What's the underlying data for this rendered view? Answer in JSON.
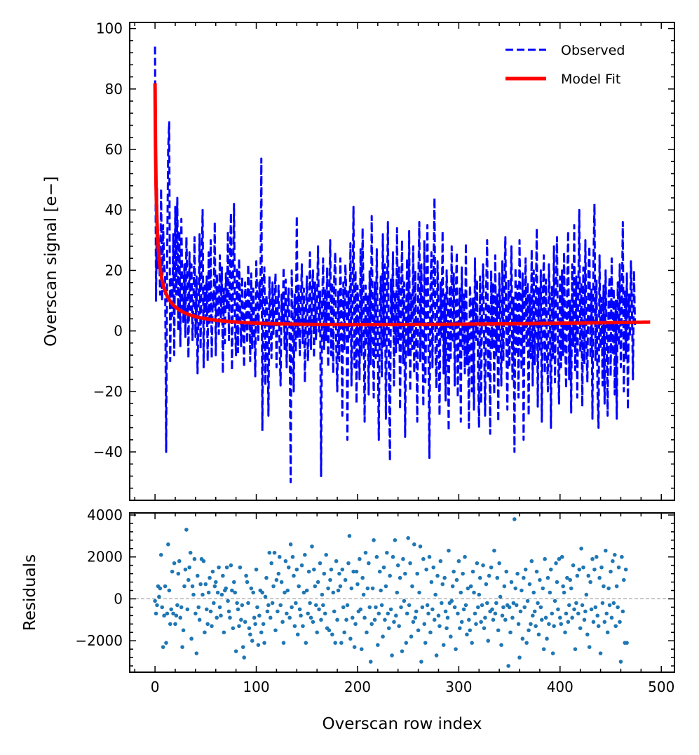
{
  "chart_data": [
    {
      "panel": "top",
      "type": "line",
      "xlabel": "",
      "ylabel": "Overscan signal [e−]",
      "xlim": [
        -25,
        513
      ],
      "ylim": [
        -56,
        102
      ],
      "xticks": [
        0,
        100,
        200,
        300,
        400,
        500
      ],
      "yticks": [
        -40,
        -20,
        0,
        20,
        40,
        60,
        80,
        100
      ],
      "ytick_labels": [
        "−40",
        "−20",
        "0",
        "20",
        "40",
        "60",
        "80",
        "100"
      ],
      "legend": {
        "position": "top-right",
        "entries": [
          "Observed",
          "Model Fit"
        ]
      },
      "series": [
        {
          "name": "Observed",
          "style": "dashed",
          "color": "#0000ff",
          "x_start": 0,
          "x_step": 1,
          "values": [
            94,
            10,
            47,
            20,
            28,
            12,
            47,
            10,
            35,
            22,
            18,
            -40,
            25,
            60,
            69,
            -10,
            18,
            5,
            32,
            -8,
            41,
            12,
            44,
            0,
            33,
            -5,
            37,
            12,
            3,
            22,
            -2,
            31,
            14,
            -9,
            26,
            7,
            22,
            -3,
            10,
            31,
            -2,
            18,
            -14,
            7,
            32,
            -6,
            22,
            40,
            -12,
            15,
            4,
            18,
            -10,
            26,
            2,
            30,
            -9,
            13,
            8,
            36,
            -8,
            19,
            11,
            -1,
            25,
            4,
            21,
            -14,
            14,
            -4,
            19,
            7,
            33,
            -3,
            22,
            39,
            -13,
            16,
            42,
            3,
            -8,
            21,
            -7,
            24,
            10,
            -5,
            18,
            2,
            -12,
            16,
            9,
            -4,
            22,
            12,
            -10,
            19,
            -6,
            14,
            2,
            -15,
            23,
            11,
            -3,
            16,
            7,
            57,
            -33,
            14,
            21,
            -18,
            12,
            5,
            -28,
            18,
            4,
            -9,
            16,
            -1,
            10,
            19,
            -12,
            6,
            15,
            -4,
            -18,
            12,
            3,
            21,
            -6,
            17,
            -12,
            8,
            14,
            -5,
            -50,
            20,
            3,
            -20,
            12,
            -7,
            38,
            -2,
            15,
            -8,
            9,
            22,
            -4,
            14,
            -17,
            6,
            18,
            -10,
            1,
            26,
            -6,
            12,
            20,
            -9,
            16,
            -3,
            9,
            28,
            -1,
            13,
            -48,
            7,
            24,
            -6,
            14,
            -3,
            21,
            -12,
            9,
            30,
            -8,
            16,
            -14,
            18,
            26,
            -5,
            -20,
            13,
            -10,
            24,
            7,
            -28,
            16,
            -6,
            22,
            11,
            -36,
            13,
            -3,
            29,
            -18,
            9,
            41,
            -12,
            20,
            -24,
            15,
            4,
            -16,
            27,
            -8,
            34,
            7,
            -30,
            15,
            -4,
            12,
            -21,
            20,
            -11,
            38,
            3,
            -22,
            16,
            -9,
            27,
            -3,
            -36,
            8,
            18,
            -15,
            32,
            -5,
            22,
            -29,
            10,
            36,
            -13,
            -43,
            17,
            2,
            26,
            -18,
            13,
            -7,
            34,
            -4,
            21,
            -26,
            9,
            30,
            -11,
            16,
            -35,
            4,
            24,
            -8,
            33,
            -20,
            12,
            -6,
            28,
            -14,
            20,
            -3,
            -30,
            15,
            36,
            -10,
            22,
            2,
            -25,
            30,
            -17,
            9,
            35,
            -5,
            -42,
            14,
            26,
            -12,
            18,
            44,
            -7,
            -19,
            23,
            4,
            -28,
            16,
            -2,
            33,
            -14,
            12,
            -23,
            20,
            6,
            -33,
            15,
            -9,
            28,
            -4,
            19,
            -18,
            10,
            26,
            -22,
            5,
            14,
            -30,
            21,
            -6,
            12,
            -14,
            29,
            -11,
            2,
            -32,
            15,
            8,
            -20,
            11,
            -26,
            24,
            -3,
            17,
            -12,
            -32,
            18,
            -24,
            8,
            22,
            -2,
            -28,
            13,
            30,
            -15,
            9,
            -34,
            20,
            -6,
            16,
            -21,
            25,
            -8,
            12,
            -30,
            19,
            6,
            -18,
            23,
            -10,
            14,
            31,
            -4,
            -26,
            17,
            -12,
            9,
            28,
            -16,
            11,
            -40,
            21,
            -7,
            15,
            -22,
            30,
            3,
            -13,
            19,
            -36,
            10,
            24,
            -5,
            16,
            -28,
            12,
            -9,
            27,
            -18,
            20,
            -11,
            8,
            34,
            -25,
            14,
            -7,
            20,
            -30,
            11,
            25,
            -14,
            17,
            -4,
            -20,
            22,
            9,
            -32,
            15,
            -9,
            28,
            -17,
            13,
            31,
            -6,
            -24,
            18,
            -12,
            20,
            -8,
            26,
            -2,
            -19,
            14,
            33,
            -16,
            10,
            -27,
            22,
            -5,
            35,
            -13,
            18,
            -22,
            12,
            40,
            -7,
            16,
            -25,
            21,
            -11,
            30,
            -4,
            -17,
            19,
            28,
            -9,
            14,
            -29,
            23,
            42,
            -10,
            17,
            -20,
            -32,
            25,
            -6,
            11,
            -18,
            15,
            -24,
            20,
            -3,
            -28,
            12,
            18,
            -15,
            24,
            -8,
            14,
            -21,
            10,
            -29,
            16,
            -5,
            22,
            -12,
            8,
            36,
            -20,
            13,
            -9,
            19,
            -26,
            12,
            -2,
            23,
            8,
            -16,
            20,
            2
          ]
        },
        {
          "name": "Model Fit",
          "style": "solid",
          "color": "#ff0000",
          "model": "82.5 * (x + 1)^(-0.75) - 0.56 + 0.0055 * x",
          "x_range": [
            0,
            489
          ]
        }
      ]
    },
    {
      "panel": "bottom",
      "type": "scatter",
      "xlabel": "Overscan row index",
      "ylabel": "Residuals",
      "xlim": [
        -25,
        513
      ],
      "ylim": [
        -3500,
        4100
      ],
      "xticks": [
        0,
        100,
        200,
        300,
        400,
        500
      ],
      "xtick_labels": [
        "0",
        "100",
        "200",
        "300",
        "400",
        "500"
      ],
      "yticks": [
        -2000,
        0,
        2000,
        4000
      ],
      "ytick_labels": [
        "−2000",
        "0",
        "2000",
        "4000"
      ],
      "reference_line": 0,
      "series": [
        {
          "name": "Residuals",
          "color": "#1f77b4",
          "x_start": 0,
          "x_step": 1,
          "values": [
            -100,
            -700,
            -300,
            600,
            100,
            500,
            2100,
            -400,
            -2300,
            -800,
            600,
            -2100,
            -700,
            2600,
            400,
            -1200,
            -500,
            1300,
            -700,
            1700,
            -1200,
            -800,
            -300,
            1200,
            1800,
            -900,
            -400,
            -2300,
            -1500,
            600,
            1400,
            3300,
            -500,
            900,
            1500,
            2200,
            -1900,
            600,
            200,
            1900,
            -700,
            -2600,
            1100,
            -400,
            -1000,
            700,
            1900,
            200,
            1800,
            -1600,
            700,
            -500,
            -1200,
            300,
            1000,
            -600,
            -1300,
            1300,
            -200,
            600,
            800,
            -900,
            300,
            1500,
            -400,
            -800,
            200,
            1100,
            -1600,
            400,
            500,
            1500,
            -100,
            -600,
            -900,
            1600,
            400,
            -1400,
            800,
            300,
            -2500,
            -200,
            -500,
            -1300,
            1500,
            -1000,
            -300,
            -2300,
            -2800,
            -1100,
            1100,
            800,
            -200,
            -1400,
            -1700,
            500,
            -2000,
            300,
            -900,
            -1200,
            1400,
            -400,
            -2200,
            -800,
            400,
            -1600,
            300,
            -1200,
            -2100,
            100,
            1000,
            -600,
            -300,
            2200,
            -900,
            1700,
            -200,
            600,
            2200,
            -1500,
            900,
            -600,
            1200,
            2000,
            -300,
            800,
            -1100,
            -2100,
            300,
            1800,
            -700,
            400,
            1500,
            -900,
            2600,
            -400,
            2000,
            1100,
            -1300,
            -200,
            1400,
            -1700,
            600,
            -500,
            -800,
            1600,
            -1300,
            300,
            2100,
            -2100,
            400,
            -700,
            1300,
            -200,
            -900,
            2500,
            -1100,
            1400,
            600,
            -300,
            -1600,
            800,
            -500,
            1700,
            -1000,
            200,
            -300,
            1200,
            -700,
            2100,
            -1400,
            500,
            -1500,
            900,
            1400,
            -1700,
            300,
            -600,
            -2100,
            1800,
            -1000,
            400,
            1200,
            600,
            -2100,
            1400,
            -400,
            -1600,
            900,
            -1000,
            -300,
            1700,
            3000,
            -1900,
            500,
            -900,
            1300,
            -2300,
            -1200,
            1300,
            700,
            -600,
            1900,
            -500,
            -2400,
            1000,
            200,
            -900,
            2200,
            -1600,
            500,
            1700,
            -400,
            -3000,
            -1200,
            500,
            2800,
            -1000,
            -400,
            2000,
            -2200,
            -700,
            1300,
            400,
            -300,
            -1800,
            1500,
            -1000,
            600,
            2200,
            -700,
            -1400,
            1100,
            -500,
            -2700,
            2000,
            -1100,
            2800,
            -800,
            300,
            1600,
            -1300,
            1000,
            -400,
            -2500,
            1900,
            -100,
            1200,
            -2100,
            -700,
            2900,
            -300,
            1700,
            -1800,
            600,
            -1100,
            2600,
            -900,
            -600,
            1200,
            -1500,
            300,
            2500,
            -3000,
            -400,
            1900,
            -1200,
            -2100,
            1400,
            -300,
            -700,
            2000,
            -1600,
            800,
            -500,
            1500,
            -1000,
            200,
            -2700,
            1100,
            -800,
            -1300,
            1800,
            -200,
            700,
            -2200,
            1000,
            -600,
            -1400,
            -900,
            2300,
            -200,
            -1800,
            -100,
            600,
            1300,
            -400,
            -2400,
            900,
            -700,
            1800,
            -1400,
            300,
            -1100,
            1200,
            -500,
            2000,
            -300,
            -1700,
            500,
            -1000,
            -1500,
            600,
            -2100,
            1300,
            300,
            -700,
            -1200,
            1700,
            -400,
            200,
            1000,
            -1100,
            -300,
            1600,
            -1400,
            -900,
            700,
            -200,
            -2000,
            1100,
            -600,
            1500,
            -500,
            -1000,
            2300,
            -700,
            -200,
            1000,
            -1500,
            1700,
            100,
            -2200,
            -800,
            -400,
            600,
            -1000,
            1300,
            -300,
            -3200,
            -400,
            -1600,
            800,
            -900,
            -200,
            3800,
            500,
            -300,
            1200,
            -1200,
            -2800,
            -600,
            400,
            -1900,
            1000,
            -400,
            1400,
            -2100,
            -100,
            -1500,
            700,
            -1200,
            1800,
            -800,
            300,
            -600,
            -1300,
            1300,
            -200,
            -1700,
            900,
            -400,
            -1000,
            500,
            -2400,
            1900,
            -900,
            -1900,
            1000,
            -1200,
            300,
            1400,
            -700,
            -2600,
            -1300,
            -100,
            1700,
            800,
            -500,
            1900,
            -900,
            -1200,
            2000,
            600,
            300,
            -1600,
            -700,
            1000,
            -1100,
            -300,
            900,
            500,
            -900,
            1600,
            -500,
            -2400,
            -200,
            1100,
            -700,
            1400,
            -1400,
            2400,
            -300,
            1500,
            -1000,
            -600,
            200,
            -1700,
            1100,
            -2300,
            800,
            -500,
            1900,
            -1100,
            1400,
            -400,
            2000,
            -800,
            -1300,
            1000,
            -2600,
            1500,
            -200,
            600,
            -1100,
            2300,
            -700,
            -1600,
            500,
            -300,
            1300,
            -900,
            1800,
            -200,
            2100,
            -1300,
            600,
            -400,
            1500,
            -1100,
            -3000,
            2000,
            -600,
            900,
            -2100,
            1400,
            -2100
          ]
        }
      ]
    }
  ]
}
